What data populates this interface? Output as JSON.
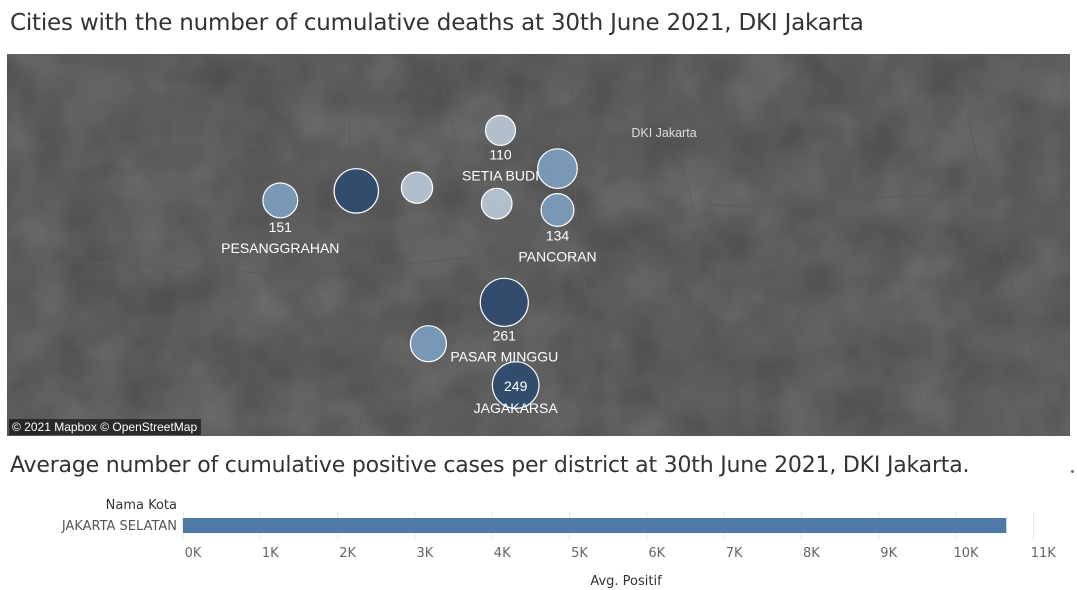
{
  "map": {
    "title": "Cities with the number of cumulative deaths at 30th June 2021, DKI Jakarta",
    "attribution": "© 2021 Mapbox © OpenStreetMap",
    "place_label": "DKI Jakarta",
    "colors": {
      "background": "#4a4a4a",
      "light_bubble": "#b8c8d6",
      "mid_bubble": "#7b9dbd",
      "dark_bubble": "#2f4b70"
    }
  },
  "chart_data": [
    {
      "type": "scatter",
      "subtype": "bubble-map",
      "title": "Cities with the number of cumulative deaths at 30th June 2021, DKI Jakarta",
      "points": [
        {
          "name": "SETIA BUDI",
          "value": 110,
          "lon": 106.83,
          "lat": -6.214,
          "labeled": true
        },
        {
          "name": "",
          "value": 190,
          "lon": 106.845,
          "lat": -6.226,
          "labeled": false
        },
        {
          "name": "",
          "value": 230,
          "lon": 106.792,
          "lat": -6.233,
          "labeled": false
        },
        {
          "name": "PESANGGRAHAN",
          "value": 151,
          "lon": 106.772,
          "lat": -6.236,
          "labeled": true
        },
        {
          "name": "",
          "value": 120,
          "lon": 106.808,
          "lat": -6.232,
          "labeled": false
        },
        {
          "name": "",
          "value": 115,
          "lon": 106.829,
          "lat": -6.237,
          "labeled": false
        },
        {
          "name": "PANCORAN",
          "value": 134,
          "lon": 106.845,
          "lat": -6.239,
          "labeled": true
        },
        {
          "name": "PASAR MINGGU",
          "value": 261,
          "lon": 106.831,
          "lat": -6.268,
          "labeled": true
        },
        {
          "name": "",
          "value": 160,
          "lon": 106.811,
          "lat": -6.281,
          "labeled": false
        },
        {
          "name": "JAGAKARSA",
          "value": 249,
          "lon": 106.834,
          "lat": -6.294,
          "labeled": true
        }
      ]
    },
    {
      "type": "bar",
      "orientation": "horizontal",
      "title": "Average number of cumulative positive cases per district at 30th June 2021, DKI Jakarta.",
      "category_header": "Nama Kota",
      "categories": [
        "JAKARTA SELATAN"
      ],
      "values": [
        10650
      ],
      "xlabel": "Avg. Positif",
      "xlim": [
        0,
        11500
      ],
      "ticks": [
        0,
        1000,
        2000,
        3000,
        4000,
        5000,
        6000,
        7000,
        8000,
        9000,
        10000,
        11000
      ],
      "tick_labels": [
        "0K",
        "1K",
        "2K",
        "3K",
        "4K",
        "5K",
        "6K",
        "7K",
        "8K",
        "9K",
        "10K",
        "11K"
      ],
      "color": "#4e79a7",
      "grid": true
    }
  ]
}
